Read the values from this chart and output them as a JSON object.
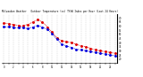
{
  "title": "Milwaukee Weather   Outdoor Temperature (vs) THSW Index per Hour (Last 24 Hours)",
  "temp_color": "#0000dd",
  "thsw_color": "#dd0000",
  "background_color": "#ffffff",
  "grid_color": "#aaaaaa",
  "ylim": [
    15,
    75
  ],
  "yticks": [
    20,
    25,
    30,
    35,
    40,
    45,
    50,
    55,
    60,
    65,
    70
  ],
  "hours": [
    0,
    1,
    2,
    3,
    4,
    5,
    6,
    7,
    8,
    9,
    10,
    11,
    12,
    13,
    14,
    15,
    16,
    17,
    18,
    19,
    20,
    21,
    22,
    23
  ],
  "temp": [
    60,
    60,
    59,
    59,
    58,
    57,
    59,
    61,
    59,
    56,
    51,
    44,
    38,
    36,
    34,
    32,
    31,
    30,
    29,
    28,
    27,
    26,
    25,
    24
  ],
  "thsw": [
    64,
    63,
    62,
    61,
    61,
    62,
    65,
    68,
    65,
    59,
    53,
    46,
    42,
    41,
    40,
    38,
    36,
    35,
    33,
    31,
    30,
    29,
    28,
    27
  ]
}
